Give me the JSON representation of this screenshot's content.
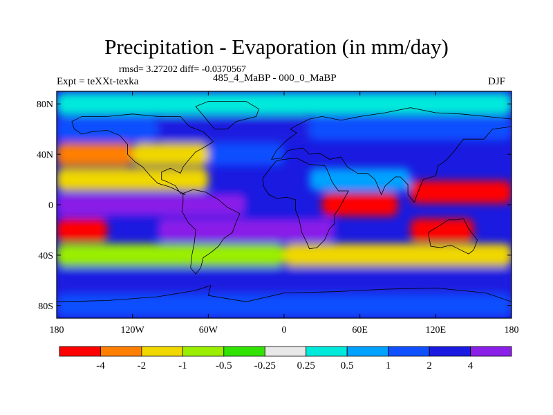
{
  "title": "Precipitation - Evaporation (in mm/day)",
  "subtitle": "rmsd= 3.27202  diff= -0.0370567",
  "experiment_label": "Expt = teXXt-texka",
  "case_label": "485_4_MaBP - 000_0_MaBP",
  "season_label": "DJF",
  "chart_data": {
    "type": "heatmap",
    "title": "Precipitation - Evaporation (in mm/day)",
    "xlabel": "",
    "ylabel": "",
    "x_ticks": [
      "180",
      "120W",
      "60W",
      "0",
      "60E",
      "120E",
      "180"
    ],
    "y_ticks": [
      "80N",
      "40N",
      "0",
      "40S",
      "80S"
    ],
    "xlim": [
      -180,
      180
    ],
    "ylim": [
      -90,
      90
    ],
    "colorbar": {
      "labels": [
        "-4",
        "-2",
        "-1",
        "-0.5",
        "-0.25",
        "0.25",
        "0.5",
        "1",
        "2",
        "4"
      ],
      "colors": [
        "#ff0000",
        "#ff7f00",
        "#f0d700",
        "#9aef00",
        "#33e300",
        "#e8e8e8",
        "#00eadc",
        "#00a2ff",
        "#1050ff",
        "#1a1ae0",
        "#8a1fe8"
      ]
    },
    "bands": [
      {
        "lat": 80,
        "lon": [
          -180,
          180
        ],
        "level": 6
      },
      {
        "lat": 60,
        "lon": [
          -180,
          -100
        ],
        "level": 8
      },
      {
        "lat": 60,
        "lon": [
          -100,
          20
        ],
        "level": 9
      },
      {
        "lat": 60,
        "lon": [
          20,
          180
        ],
        "level": 8
      },
      {
        "lat": 40,
        "lon": [
          -180,
          -120
        ],
        "level": 1
      },
      {
        "lat": 40,
        "lon": [
          -120,
          -60
        ],
        "level": 2
      },
      {
        "lat": 40,
        "lon": [
          -60,
          0
        ],
        "level": 8
      },
      {
        "lat": 20,
        "lon": [
          -180,
          -60
        ],
        "level": 2
      },
      {
        "lat": 20,
        "lon": [
          20,
          100
        ],
        "level": 7
      },
      {
        "lat": 10,
        "lon": [
          100,
          180
        ],
        "level": 0
      },
      {
        "lat": 0,
        "lon": [
          -180,
          -30
        ],
        "level": 10
      },
      {
        "lat": 0,
        "lon": [
          30,
          90
        ],
        "level": 0
      },
      {
        "lat": -20,
        "lon": [
          -180,
          -140
        ],
        "level": 0
      },
      {
        "lat": -20,
        "lon": [
          -100,
          40
        ],
        "level": 10
      },
      {
        "lat": -20,
        "lon": [
          100,
          150
        ],
        "level": 0
      },
      {
        "lat": -40,
        "lon": [
          -180,
          0
        ],
        "level": 3
      },
      {
        "lat": -40,
        "lon": [
          0,
          180
        ],
        "level": 2
      },
      {
        "lat": -60,
        "lon": [
          -180,
          180
        ],
        "level": 9
      },
      {
        "lat": -80,
        "lon": [
          -180,
          180
        ],
        "level": 8
      }
    ]
  }
}
